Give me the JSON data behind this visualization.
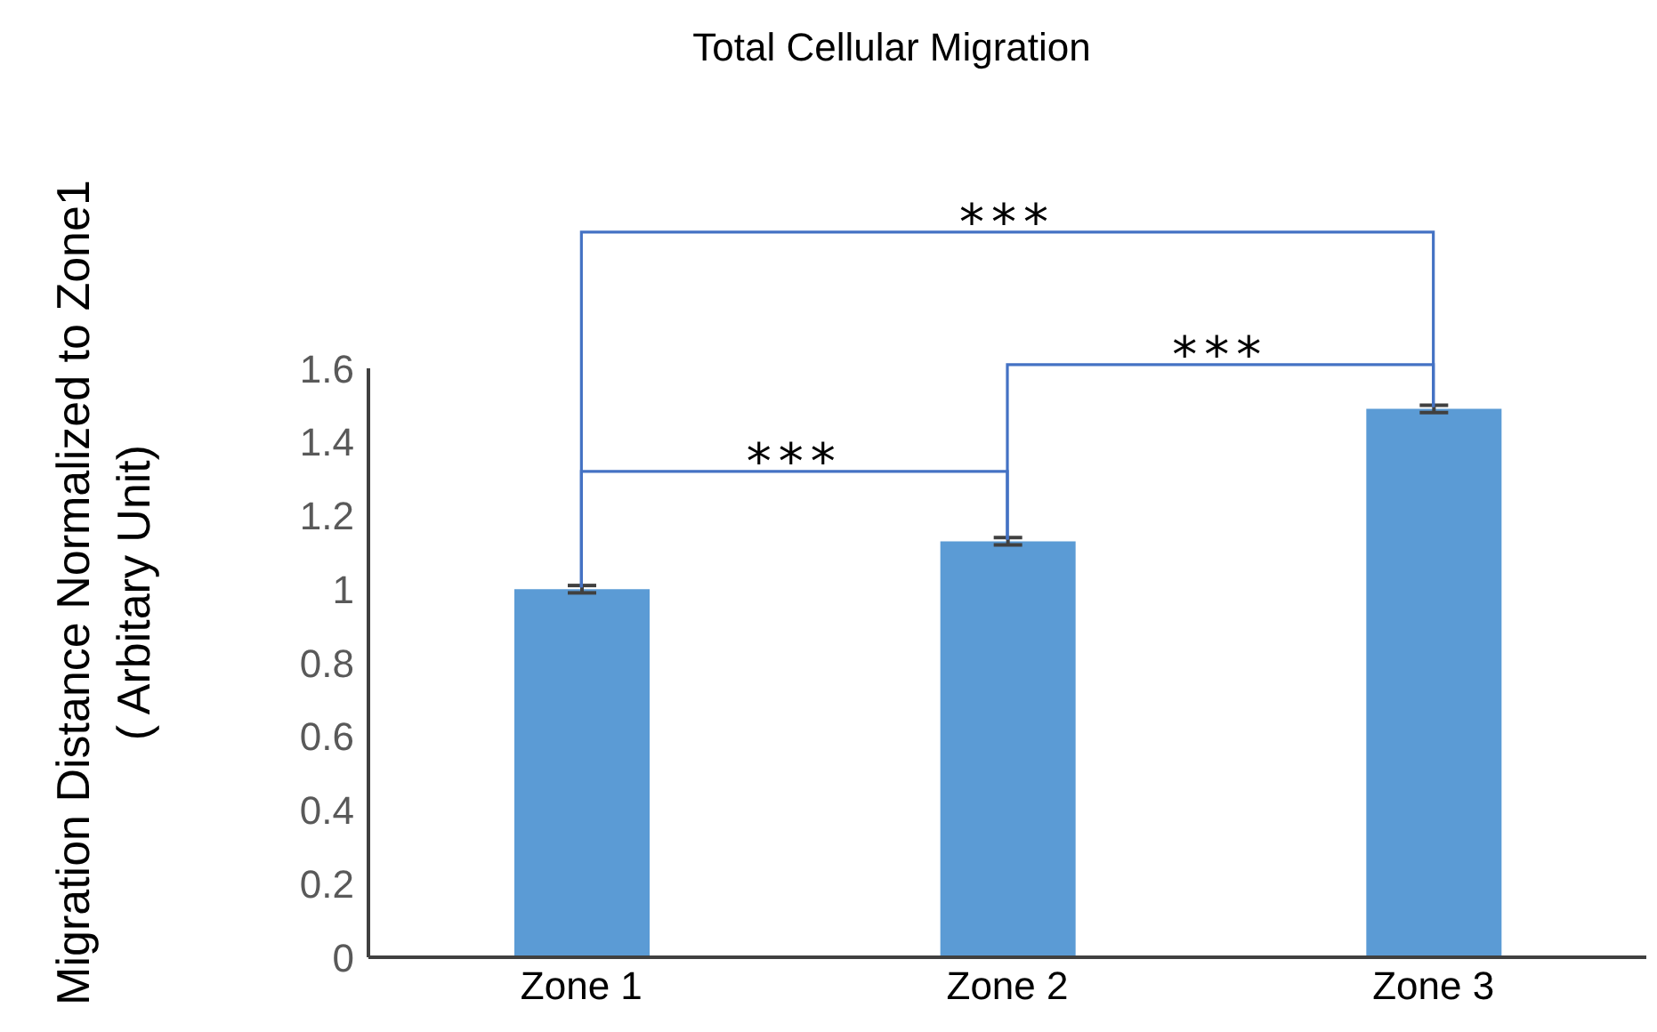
{
  "chart_data": {
    "type": "bar",
    "title": "Total Cellular Migration",
    "ylabel": "Migration Distance Normalized to Zone1\n( Arbitary Unit)",
    "categories": [
      "Zone 1",
      "Zone 2",
      "Zone 3"
    ],
    "values": [
      1.0,
      1.13,
      1.49
    ],
    "errors": [
      0.01,
      0.01,
      0.01
    ],
    "color": "#5b9bd5",
    "ylim": [
      0,
      1.6
    ],
    "yticks": [
      0,
      0.2,
      0.4,
      0.6,
      0.8,
      1,
      1.2,
      1.4,
      1.6
    ],
    "annotations": [
      "***",
      "***",
      "***"
    ]
  }
}
